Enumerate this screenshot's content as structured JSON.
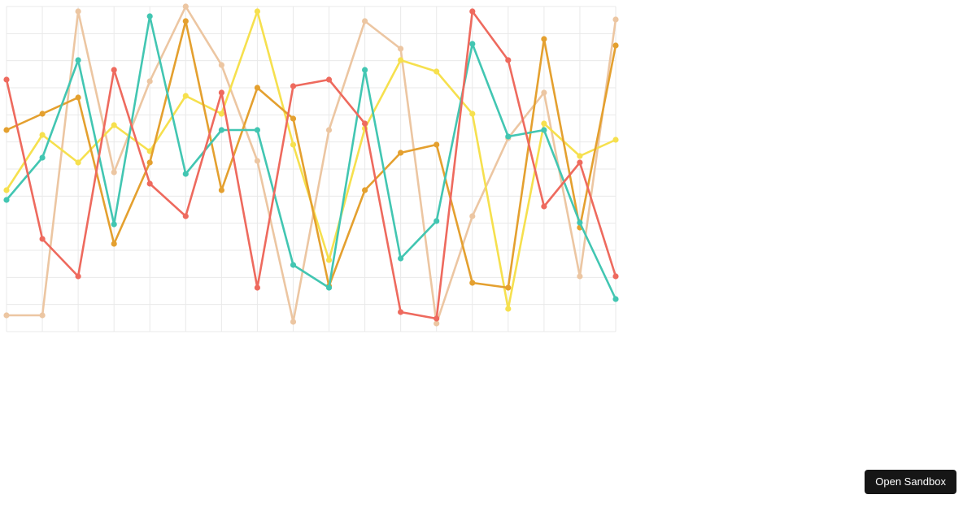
{
  "page": {
    "background": "#ffffff"
  },
  "sandbox_button": {
    "label": "Open Sandbox",
    "bg": "#161616",
    "text_color": "#ffffff"
  },
  "chart_data": {
    "type": "line",
    "title": "",
    "xlabel": "",
    "ylabel": "",
    "x": [
      0,
      1,
      2,
      3,
      4,
      5,
      6,
      7,
      8,
      9,
      10,
      11,
      12,
      13,
      14,
      15,
      16,
      17
    ],
    "ylim": [
      0,
      100
    ],
    "grid": true,
    "legend": false,
    "x_gridlines": 18,
    "y_gridlines": 13,
    "grid_color": "#e9e9e9",
    "plot_bg": "#ffffff",
    "line_width": 2.6,
    "point_radius": 3.6,
    "series": [
      {
        "name": "series-tan",
        "color": "#ecc6a2",
        "values": [
          5,
          5,
          98.5,
          49,
          77,
          100,
          82,
          52.5,
          3,
          62,
          95.5,
          87,
          2.5,
          35.5,
          59.5,
          73.5,
          17,
          96
        ]
      },
      {
        "name": "series-yellow",
        "color": "#f6e04e",
        "values": [
          43.5,
          60.5,
          52,
          63.5,
          55.5,
          72.5,
          67,
          98.5,
          57.5,
          22,
          62.5,
          83.5,
          80,
          67,
          7,
          64,
          54,
          59
        ]
      },
      {
        "name": "series-orange",
        "color": "#e4a02f",
        "values": [
          62,
          67,
          72,
          27,
          52,
          95.5,
          43.5,
          75,
          65.5,
          14,
          43.5,
          55,
          57.5,
          15,
          13.5,
          90,
          32,
          88
        ]
      },
      {
        "name": "series-teal",
        "color": "#42c6b2",
        "values": [
          40.5,
          53.5,
          83.5,
          33,
          97,
          48.5,
          62,
          62,
          20.5,
          13.5,
          80.5,
          22.5,
          34,
          88.5,
          60,
          62,
          33.5,
          10
        ]
      },
      {
        "name": "series-red",
        "color": "#ee6a5e",
        "values": [
          77.5,
          28.5,
          17,
          80.5,
          45.5,
          35.5,
          73.5,
          13.5,
          75.5,
          77.5,
          64,
          6,
          4,
          98.5,
          83.5,
          38.5,
          52,
          17
        ]
      }
    ]
  }
}
